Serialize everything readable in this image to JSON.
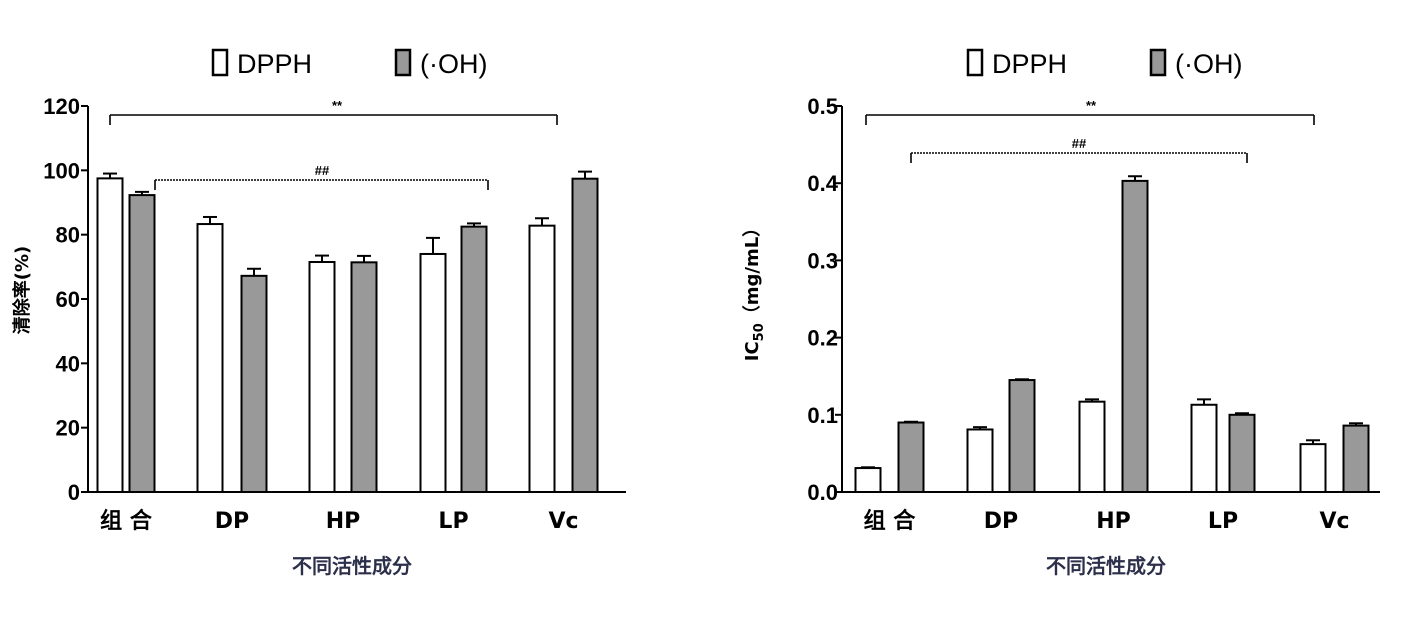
{
  "chart_data": [
    {
      "type": "bar",
      "categories": [
        "组 合",
        "DP",
        "HP",
        "LP",
        "Vc"
      ],
      "series": [
        {
          "name": "DPPH",
          "values": [
            97.5,
            83.3,
            71.5,
            74.0,
            82.8
          ],
          "errors": [
            1.5,
            2.2,
            2.0,
            5.0,
            2.3
          ]
        },
        {
          "name": "(·OH)",
          "values": [
            92.3,
            67.2,
            71.4,
            82.5,
            97.4
          ],
          "errors": [
            1.0,
            2.2,
            2.0,
            1.0,
            2.2
          ]
        }
      ],
      "xlabel": "不同活性成分",
      "ylabel": "清除率(%)",
      "ylim": [
        0,
        120
      ],
      "yticks": [
        "0",
        "20",
        "40",
        "60",
        "80",
        "100",
        "120"
      ],
      "legend_position": "top",
      "annotations": [
        {
          "text": "**",
          "from": "组 合",
          "to": "Vc"
        },
        {
          "text": "##",
          "from": "组 合",
          "to": "LP"
        }
      ]
    },
    {
      "type": "bar",
      "categories": [
        "组 合",
        "DP",
        "HP",
        "LP",
        "Vc"
      ],
      "series": [
        {
          "name": "DPPH",
          "values": [
            0.031,
            0.081,
            0.117,
            0.113,
            0.062
          ],
          "errors": [
            0.001,
            0.003,
            0.003,
            0.007,
            0.005
          ]
        },
        {
          "name": "(·OH)",
          "values": [
            0.09,
            0.145,
            0.403,
            0.1,
            0.086
          ],
          "errors": [
            0.001,
            0.001,
            0.006,
            0.002,
            0.003
          ]
        }
      ],
      "xlabel": "不同活性成分",
      "ylabel": "IC",
      "ylabel_sub": "50",
      "ylabel_unit": "（mg/mL）",
      "ylim": [
        0,
        0.5
      ],
      "yticks": [
        "0.0",
        "0.1",
        "0.2",
        "0.3",
        "0.4",
        "0.5"
      ],
      "legend_position": "top",
      "annotations": [
        {
          "text": "**",
          "from": "组 合",
          "to": "Vc"
        },
        {
          "text": "##",
          "from": "组 合",
          "to": "LP"
        }
      ]
    }
  ],
  "colors": {
    "series1_fill": "#ffffff",
    "series2_fill": "#999999",
    "stroke": "#000000"
  }
}
